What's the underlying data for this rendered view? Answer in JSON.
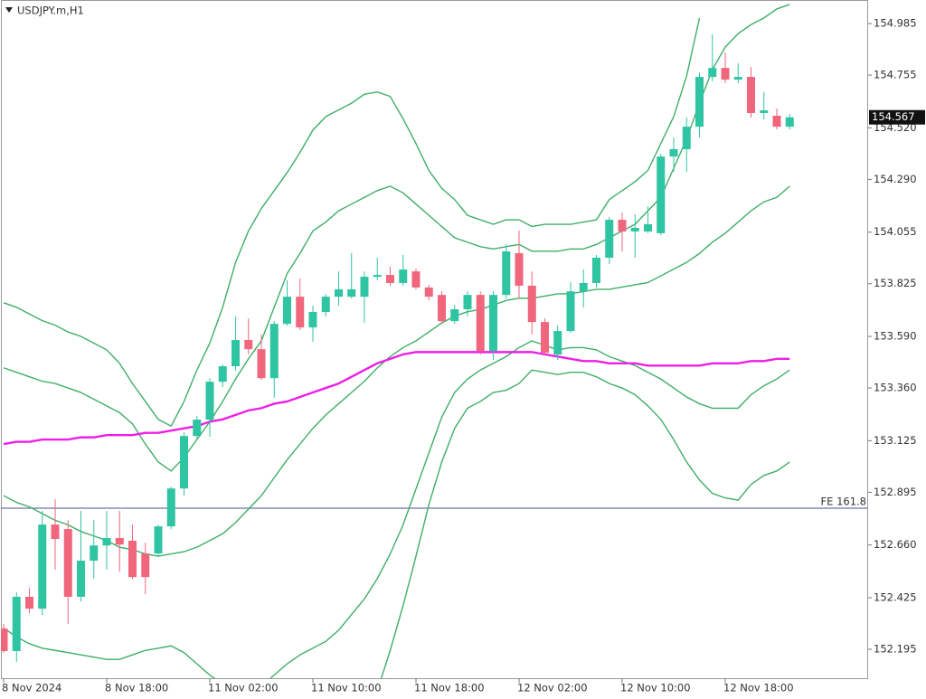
{
  "chart_data": {
    "type": "candlestick",
    "title": "USDJPY.m,H1",
    "categories": [
      "8 Nov 2024",
      null,
      null,
      null,
      null,
      null,
      null,
      null,
      "8 Nov 18:00",
      null,
      null,
      null,
      null,
      null,
      null,
      null,
      "11 Nov 02:00",
      null,
      null,
      null,
      null,
      null,
      null,
      null,
      "11 Nov 10:00",
      null,
      null,
      null,
      null,
      null,
      null,
      null,
      "11 Nov 18:00",
      null,
      null,
      null,
      null,
      null,
      null,
      null,
      "12 Nov 02:00",
      null,
      null,
      null,
      null,
      null,
      null,
      null,
      "12 Nov 10:00",
      null,
      null,
      null,
      null,
      null,
      null,
      null,
      "12 Nov 18:00",
      null,
      null,
      null,
      null,
      null
    ],
    "open": [
      152.287,
      152.187,
      152.429,
      152.376,
      152.751,
      152.731,
      152.429,
      152.59,
      152.658,
      152.691,
      152.679,
      152.622,
      152.622,
      152.743,
      152.912,
      153.146,
      153.219,
      153.388,
      153.457,
      153.574,
      153.533,
      153.404,
      153.646,
      153.767,
      153.63,
      153.699,
      153.767,
      153.767,
      153.767,
      153.856,
      153.864,
      153.828,
      153.88,
      153.808,
      153.775,
      153.658,
      153.711,
      153.775,
      153.525,
      153.775,
      153.961,
      153.816,
      153.654,
      153.509,
      153.614,
      153.791,
      153.828,
      153.941,
      154.11,
      154.058,
      154.058,
      154.05,
      154.392,
      154.425,
      154.525,
      154.747,
      154.787,
      154.735,
      154.747,
      154.586,
      154.574,
      154.525
    ],
    "high": [
      152.308,
      152.449,
      152.469,
      152.812,
      152.864,
      152.771,
      152.812,
      152.771,
      152.812,
      152.812,
      152.751,
      152.67,
      152.751,
      152.92,
      153.162,
      153.235,
      153.404,
      153.465,
      153.679,
      153.67,
      153.598,
      153.658,
      153.84,
      153.848,
      153.727,
      153.779,
      153.88,
      153.961,
      153.88,
      153.941,
      153.9,
      153.953,
      153.892,
      153.82,
      153.791,
      153.731,
      153.791,
      153.791,
      153.791,
      154.001,
      154.062,
      153.88,
      153.67,
      153.638,
      153.832,
      153.888,
      153.953,
      154.122,
      154.142,
      154.134,
      154.17,
      154.404,
      154.477,
      154.566,
      154.767,
      154.937,
      154.856,
      154.808,
      154.791,
      154.679,
      154.606,
      154.582
    ],
    "low": [
      152.179,
      152.138,
      152.356,
      152.348,
      152.55,
      152.308,
      152.408,
      152.509,
      152.55,
      152.541,
      152.509,
      152.441,
      152.61,
      152.731,
      152.88,
      153.134,
      153.142,
      153.364,
      153.437,
      153.509,
      153.396,
      153.316,
      153.638,
      153.618,
      153.566,
      153.679,
      153.727,
      153.759,
      153.65,
      153.84,
      153.816,
      153.816,
      153.8,
      153.751,
      153.646,
      153.646,
      153.679,
      153.509,
      153.485,
      153.759,
      153.759,
      153.598,
      153.509,
      153.485,
      153.606,
      153.719,
      153.808,
      153.912,
      153.969,
      153.941,
      154.05,
      154.042,
      154.324,
      154.324,
      154.477,
      154.727,
      154.719,
      154.719,
      154.566,
      154.558,
      154.513,
      154.513
    ],
    "close": [
      152.187,
      152.429,
      152.376,
      152.751,
      152.687,
      152.429,
      152.59,
      152.658,
      152.691,
      152.662,
      152.517,
      152.517,
      152.743,
      152.912,
      153.146,
      153.219,
      153.388,
      153.457,
      153.574,
      153.533,
      153.404,
      153.646,
      153.767,
      153.63,
      153.699,
      153.767,
      153.8,
      153.8,
      153.856,
      153.864,
      153.828,
      153.888,
      153.808,
      153.767,
      153.658,
      153.711,
      153.775,
      153.525,
      153.775,
      153.969,
      153.816,
      153.654,
      153.517,
      153.614,
      153.791,
      153.828,
      153.941,
      154.11,
      154.058,
      154.074,
      154.09,
      154.392,
      154.425,
      154.525,
      154.747,
      154.787,
      154.735,
      154.747,
      154.586,
      154.598,
      154.525,
      154.567
    ],
    "up_color": "#2fc4a2",
    "down_color": "#f0667c",
    "lines": [
      {
        "color": "#3fae68",
        "values": [
          153.74,
          153.72,
          153.69,
          153.66,
          153.64,
          153.61,
          153.59,
          153.56,
          153.53,
          153.47,
          153.38,
          153.3,
          153.22,
          153.19,
          153.3,
          153.44,
          153.56,
          153.72,
          153.92,
          154.06,
          154.16,
          154.24,
          154.32,
          154.41,
          154.51,
          154.57,
          154.6,
          154.63,
          154.67,
          154.68,
          154.66,
          154.56,
          154.45,
          154.33,
          154.25,
          154.2,
          154.13,
          154.11,
          154.09,
          154.11,
          154.11,
          154.08,
          154.09,
          154.09,
          154.09,
          154.1,
          154.11,
          154.2,
          154.24,
          154.28,
          154.33,
          154.45,
          154.57,
          154.75,
          155.01,
          null,
          null,
          null,
          null,
          null,
          null,
          null
        ]
      },
      {
        "color": "#3fae68",
        "values": [
          153.45,
          153.43,
          153.41,
          153.39,
          153.38,
          153.36,
          153.34,
          153.31,
          153.28,
          153.25,
          153.2,
          153.11,
          153.03,
          152.99,
          153.05,
          153.13,
          153.21,
          153.3,
          153.4,
          153.49,
          153.57,
          153.72,
          153.87,
          153.96,
          154.06,
          154.1,
          154.15,
          154.18,
          154.21,
          154.24,
          154.26,
          154.23,
          154.18,
          154.13,
          154.08,
          154.03,
          154.01,
          153.99,
          153.98,
          153.99,
          154.0,
          153.97,
          153.97,
          153.97,
          153.98,
          153.98,
          154.0,
          154.03,
          154.06,
          154.09,
          154.15,
          154.21,
          154.34,
          154.47,
          154.63,
          154.78,
          154.88,
          154.94,
          154.98,
          155.01,
          155.05,
          155.07
        ]
      },
      {
        "color": "#3fae68",
        "values": [
          152.88,
          152.85,
          152.83,
          152.8,
          152.77,
          152.75,
          152.72,
          152.7,
          152.68,
          152.65,
          152.64,
          152.62,
          152.61,
          152.62,
          152.63,
          152.65,
          152.68,
          152.71,
          152.76,
          152.82,
          152.88,
          152.96,
          153.04,
          153.11,
          153.18,
          153.24,
          153.29,
          153.34,
          153.39,
          153.45,
          153.5,
          153.54,
          153.57,
          153.61,
          153.65,
          153.68,
          153.7,
          153.71,
          153.73,
          153.75,
          153.76,
          153.76,
          153.77,
          153.78,
          153.78,
          153.79,
          153.8,
          153.8,
          153.81,
          153.82,
          153.83,
          153.86,
          153.89,
          153.92,
          153.96,
          154.01,
          154.05,
          154.1,
          154.15,
          154.19,
          154.21,
          154.26
        ]
      },
      {
        "color": "#3fae68",
        "values": [
          152.29,
          152.25,
          152.22,
          152.2,
          152.19,
          152.18,
          152.17,
          152.16,
          152.15,
          152.15,
          152.17,
          152.19,
          152.2,
          152.21,
          152.18,
          152.13,
          152.08,
          152.04,
          152.01,
          151.99,
          152.03,
          152.08,
          152.13,
          152.17,
          152.2,
          152.23,
          152.28,
          152.35,
          152.42,
          152.51,
          152.62,
          152.75,
          152.91,
          153.07,
          153.23,
          153.34,
          153.4,
          153.44,
          153.47,
          153.5,
          153.54,
          153.57,
          153.55,
          153.53,
          153.54,
          153.54,
          153.53,
          153.5,
          153.48,
          153.46,
          153.43,
          153.4,
          153.36,
          153.32,
          153.29,
          153.27,
          153.27,
          153.27,
          153.33,
          153.37,
          153.4,
          153.44
        ]
      },
      {
        "color": "#3fae68",
        "values": [
          null,
          null,
          null,
          null,
          null,
          null,
          null,
          null,
          null,
          null,
          null,
          null,
          null,
          null,
          null,
          null,
          null,
          null,
          null,
          null,
          null,
          null,
          null,
          null,
          null,
          null,
          null,
          null,
          null,
          152.01,
          152.19,
          152.39,
          152.61,
          152.84,
          153.03,
          153.18,
          153.27,
          153.3,
          153.34,
          153.35,
          153.38,
          153.44,
          153.43,
          153.42,
          153.43,
          153.43,
          153.41,
          153.38,
          153.36,
          153.33,
          153.28,
          153.22,
          153.13,
          153.03,
          152.95,
          152.89,
          152.87,
          152.86,
          152.93,
          152.97,
          152.99,
          153.03
        ]
      },
      {
        "color": "#ee1ee6",
        "values": [
          153.11,
          153.12,
          153.12,
          153.13,
          153.13,
          153.13,
          153.14,
          153.14,
          153.15,
          153.15,
          153.15,
          153.16,
          153.16,
          153.17,
          153.18,
          153.19,
          153.21,
          153.22,
          153.24,
          153.26,
          153.27,
          153.29,
          153.3,
          153.32,
          153.34,
          153.36,
          153.38,
          153.41,
          153.44,
          153.47,
          153.49,
          153.51,
          153.52,
          153.52,
          153.52,
          153.52,
          153.52,
          153.52,
          153.52,
          153.52,
          153.52,
          153.52,
          153.51,
          153.5,
          153.49,
          153.48,
          153.48,
          153.47,
          153.47,
          153.47,
          153.46,
          153.46,
          153.46,
          153.46,
          153.46,
          153.47,
          153.47,
          153.47,
          153.48,
          153.48,
          153.49,
          153.49
        ]
      }
    ],
    "last_price": 154.567,
    "hlines": [
      {
        "label": "FE 161.8",
        "value": 152.824,
        "color": "#4a4f8a"
      }
    ],
    "ylim": [
      152.066,
      155.09
    ],
    "yticks": [
      154.985,
      154.755,
      {
        "value": 154.52,
        "label": "154.520"
      },
      {
        "value": 154.29,
        "label": "154.290"
      },
      154.055,
      153.825,
      {
        "value": 153.59,
        "label": "153.590"
      },
      {
        "value": 153.36,
        "label": "153.360"
      },
      153.125,
      152.895,
      {
        "value": 152.66,
        "label": "152.660"
      },
      152.425,
      152.195
    ]
  }
}
